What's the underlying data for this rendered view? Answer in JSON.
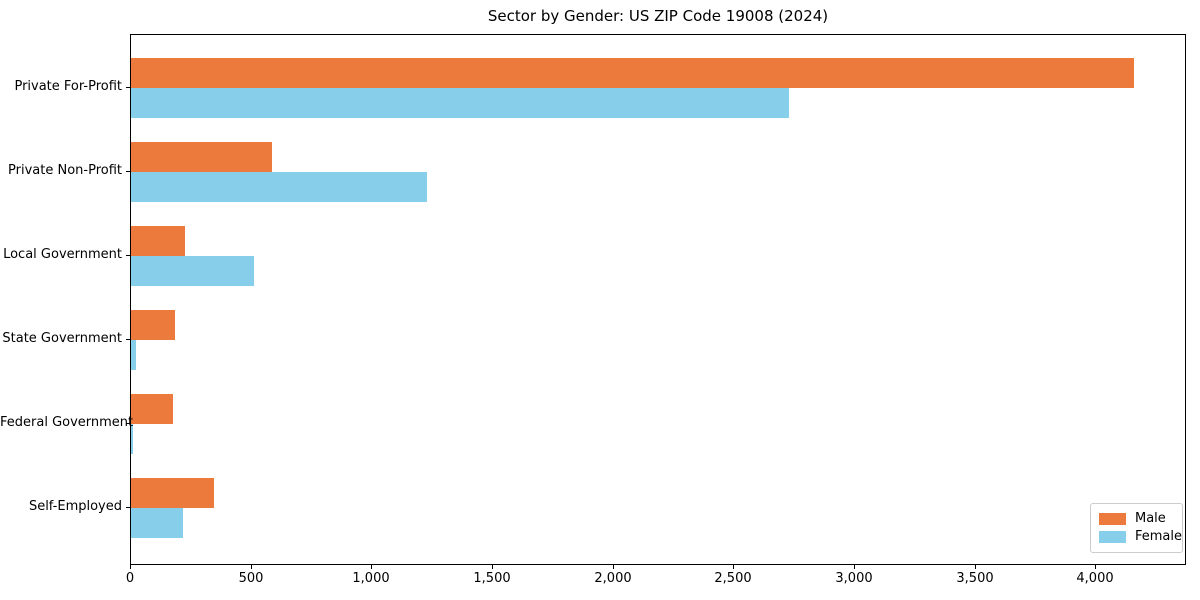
{
  "chart_data": {
    "type": "bar",
    "orientation": "horizontal",
    "title": "Sector by Gender: US ZIP Code 19008 (2024)",
    "categories": [
      "Private For-Profit",
      "Private Non-Profit",
      "Local Government",
      "State Government",
      "Federal Government",
      "Self-Employed"
    ],
    "series": [
      {
        "name": "Male",
        "color": "#ec7a3d",
        "values": [
          4158,
          583,
          223,
          182,
          174,
          343
        ]
      },
      {
        "name": "Female",
        "color": "#87ceeb",
        "values": [
          2727,
          1228,
          508,
          22,
          9,
          215
        ]
      }
    ],
    "xlim": [
      0,
      4368
    ],
    "xticks": [
      0,
      500,
      1000,
      1500,
      2000,
      2500,
      3000,
      3500,
      4000
    ],
    "xtick_labels": [
      "0",
      "500",
      "1,000",
      "1,500",
      "2,000",
      "2,500",
      "3,000",
      "3,500",
      "4,000"
    ],
    "xlabel": "",
    "ylabel": "",
    "grid": false,
    "legend": {
      "position": "lower right"
    }
  },
  "colors": {
    "background": "#ffffff",
    "spine": "#000000",
    "text": "#000000",
    "legend_border": "#cccccc"
  }
}
